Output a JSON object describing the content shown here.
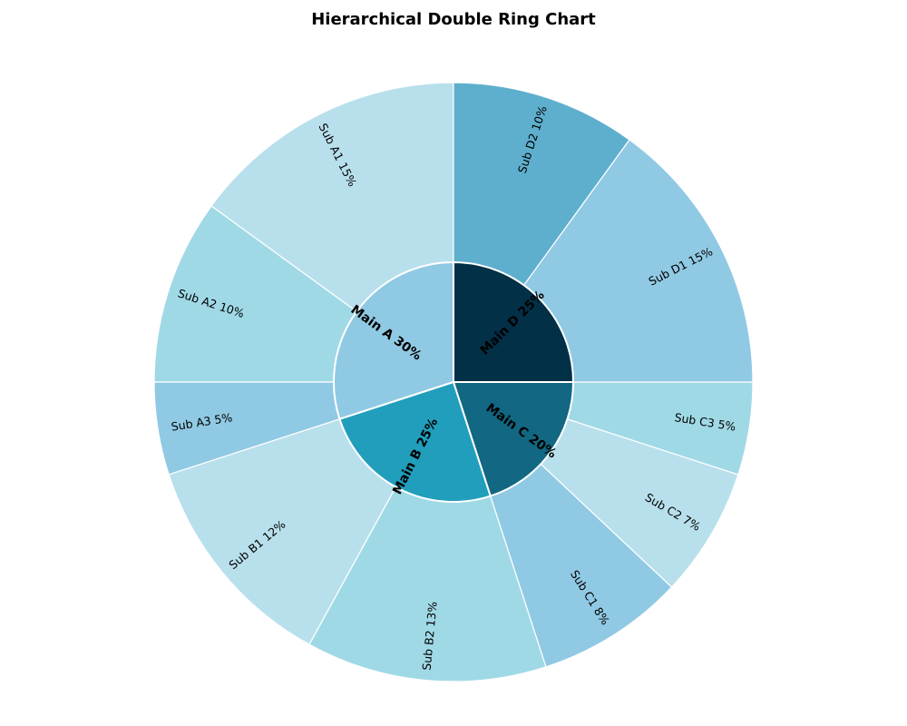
{
  "chart_data": {
    "type": "pie",
    "subtype": "nested-donut",
    "title": "Hierarchical Double Ring Chart",
    "inner_ring": [
      {
        "label": "Main A 30%",
        "name": "Main A",
        "value": 30,
        "color": "#90c9e4"
      },
      {
        "label": "Main B 25%",
        "name": "Main B",
        "value": 25,
        "color": "#219ebc"
      },
      {
        "label": "Main C 20%",
        "name": "Main C",
        "value": 20,
        "color": "#126782"
      },
      {
        "label": "Main D 25%",
        "name": "Main D",
        "value": 25,
        "color": "#023047"
      }
    ],
    "outer_ring": [
      {
        "label": "Sub A1 15%",
        "parent": "Main A",
        "value": 15,
        "color": "#b8e0ec"
      },
      {
        "label": "Sub A2 10%",
        "parent": "Main A",
        "value": 10,
        "color": "#a0d9e6"
      },
      {
        "label": "Sub A3 5%",
        "parent": "Main A",
        "value": 5,
        "color": "#90c9e4"
      },
      {
        "label": "Sub B1 12%",
        "parent": "Main B",
        "value": 12,
        "color": "#b8e0ec"
      },
      {
        "label": "Sub B2 13%",
        "parent": "Main B",
        "value": 13,
        "color": "#a0d9e6"
      },
      {
        "label": "Sub C1 8%",
        "parent": "Main C",
        "value": 8,
        "color": "#90c9e4"
      },
      {
        "label": "Sub C2 7%",
        "parent": "Main C",
        "value": 7,
        "color": "#b8e0ec"
      },
      {
        "label": "Sub C3 5%",
        "parent": "Main C",
        "value": 5,
        "color": "#a0d9e6"
      },
      {
        "label": "Sub D1 15%",
        "parent": "Main D",
        "value": 15,
        "color": "#90c9e4"
      },
      {
        "label": "Sub D2 10%",
        "parent": "Main D",
        "value": 10,
        "color": "#5eafcd"
      }
    ],
    "start_angle_deg": 90,
    "direction": "counterclockwise",
    "wedge_edge_color": "#ffffff",
    "legend": "none"
  }
}
